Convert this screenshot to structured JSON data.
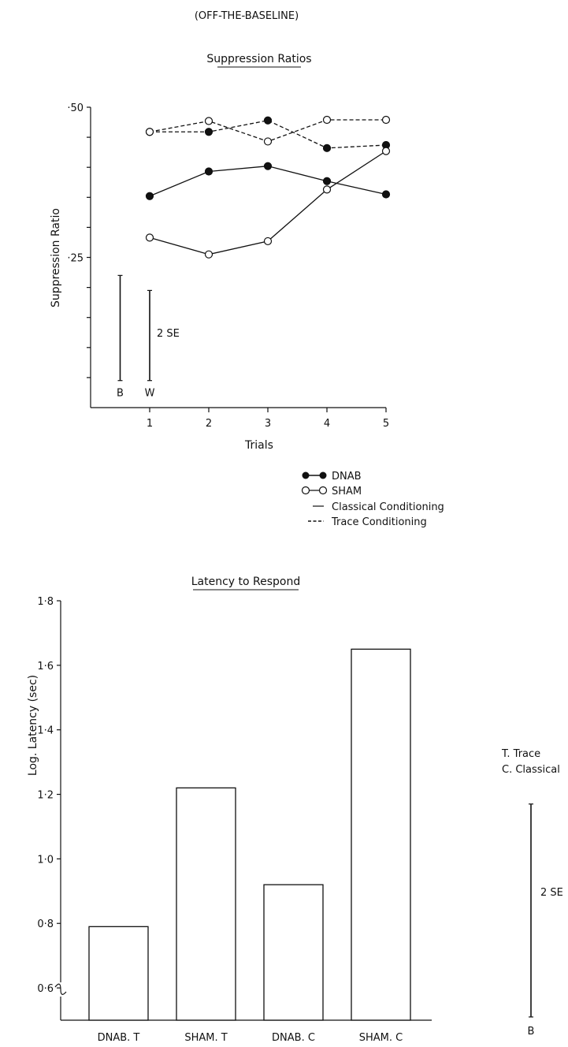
{
  "page_header": "(OFF-THE-BASELINE)",
  "chart_data": [
    {
      "type": "line",
      "title": "Suppression Ratios",
      "xlabel": "Trials",
      "ylabel": "Suppression Ratio",
      "x": [
        1,
        2,
        3,
        4,
        5
      ],
      "xticks": [
        "1",
        "2",
        "3",
        "4",
        "5"
      ],
      "xlim": [
        0,
        5
      ],
      "ylim": [
        0,
        0.5
      ],
      "ytick_values": [
        0.5,
        0.45,
        0.4,
        0.35,
        0.3,
        0.25,
        0.2,
        0.15,
        0.1,
        0.05
      ],
      "ytick_labels": [
        {
          "value": 0.5,
          "label": "·50"
        },
        {
          "value": 0.25,
          "label": "·25"
        }
      ],
      "series": [
        {
          "name": "DNAB Trace",
          "marker": "filled",
          "linestyle": "dashed",
          "values": [
            0.459,
            0.459,
            0.478,
            0.432,
            0.437
          ]
        },
        {
          "name": "SHAM Trace",
          "marker": "open",
          "linestyle": "dashed",
          "values": [
            0.459,
            0.477,
            0.443,
            0.479,
            0.479
          ]
        },
        {
          "name": "DNAB Classical",
          "marker": "filled",
          "linestyle": "solid",
          "values": [
            0.352,
            0.393,
            0.402,
            0.377,
            0.355
          ]
        },
        {
          "name": "SHAM Classical",
          "marker": "open",
          "linestyle": "solid",
          "values": [
            0.283,
            0.255,
            0.277,
            0.363,
            0.427
          ]
        }
      ],
      "error_bars": [
        {
          "label": "B",
          "x": 0.5,
          "low": 0.045,
          "high": 0.22
        },
        {
          "label": "W",
          "x": 1.0,
          "low": 0.045,
          "high": 0.195
        }
      ],
      "error_label": "2 SE",
      "legend": {
        "placement": "below",
        "entries": [
          {
            "label": "DNAB",
            "marker": "filled"
          },
          {
            "label": "SHAM",
            "marker": "open"
          },
          {
            "label": "Classical Conditioning",
            "linestyle": "solid"
          },
          {
            "label": "Trace Conditioning",
            "linestyle": "dashed"
          }
        ]
      }
    },
    {
      "type": "bar",
      "title": "Latency to Respond",
      "xlabel": "",
      "ylabel": "Log. Latency (sec)",
      "categories": [
        "DNAB. T",
        "SHAM. T",
        "DNAB. C",
        "SHAM. C"
      ],
      "values": [
        0.79,
        1.22,
        0.92,
        1.65
      ],
      "ylim": [
        0.5,
        1.8
      ],
      "axis_break": true,
      "ytick_values": [
        1.8,
        1.6,
        1.4,
        1.2,
        1.0,
        0.8,
        0.6
      ],
      "ytick_labels": [
        "1·8",
        "1·6",
        "1·4",
        "1·2",
        "1·0",
        "0·8",
        "0·6"
      ],
      "key_lines": [
        "T. Trace",
        "C. Classical"
      ],
      "error_bar": {
        "label": "B",
        "low": 0.51,
        "high": 1.17
      },
      "error_label": "2 SE"
    }
  ]
}
